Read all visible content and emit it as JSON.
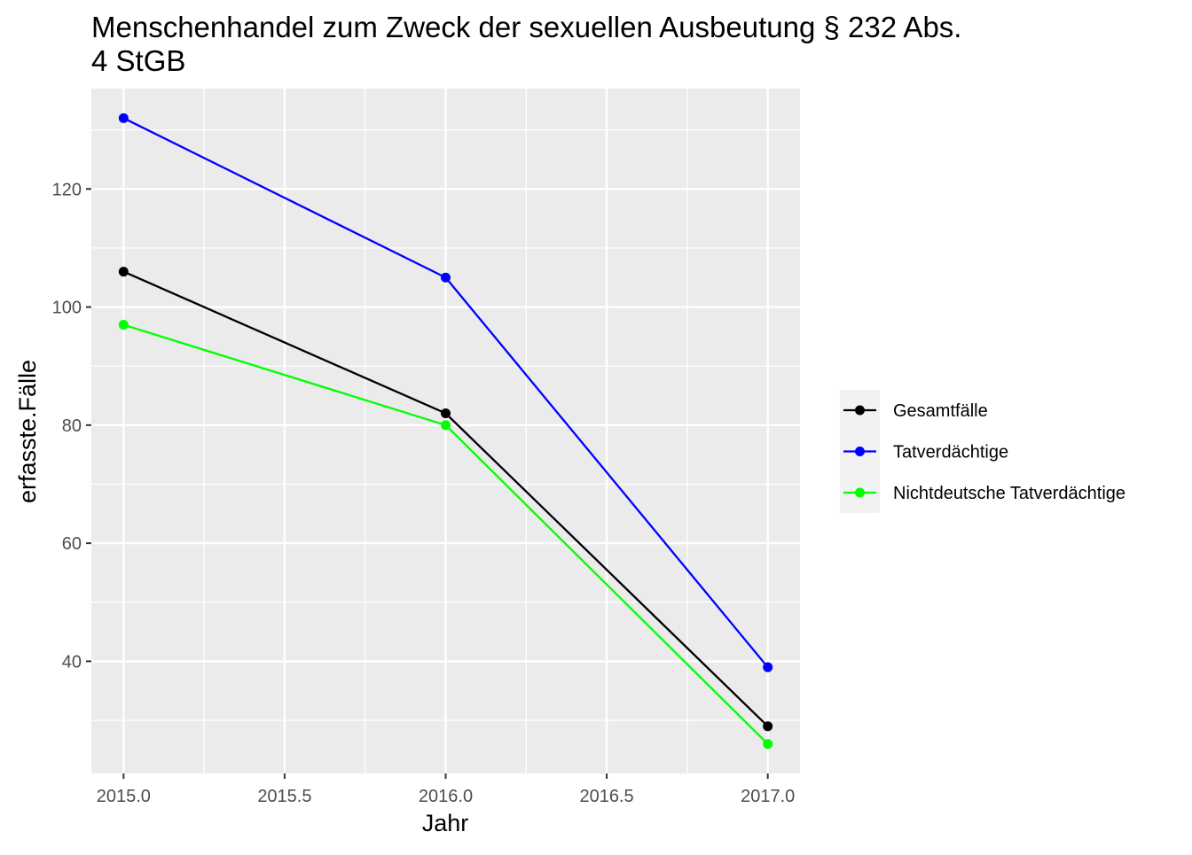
{
  "chart_data": {
    "type": "line",
    "title_line1": "Menschenhandel zum Zweck der sexuellen Ausbeutung § 232 Abs.",
    "title_line2": "4 StGB",
    "xlabel": "Jahr",
    "ylabel": "erfasste.Fälle",
    "x": [
      2015.0,
      2016.0,
      2017.0
    ],
    "xlim": [
      2014.9,
      2017.1
    ],
    "ylim": [
      21,
      137
    ],
    "xticks": [
      2015.0,
      2015.5,
      2016.0,
      2016.5,
      2017.0
    ],
    "xtick_labels": [
      "2015.0",
      "2015.5",
      "2016.0",
      "2016.5",
      "2017.0"
    ],
    "yticks": [
      40,
      60,
      80,
      100,
      120
    ],
    "ytick_labels": [
      "40",
      "60",
      "80",
      "100",
      "120"
    ],
    "grid": true,
    "legend_position": "right",
    "series": [
      {
        "name": "Gesamtfälle",
        "color": "#000000",
        "values": [
          106,
          82,
          29
        ]
      },
      {
        "name": "Tatverdächtige",
        "color": "#0000ff",
        "values": [
          132,
          105,
          39
        ]
      },
      {
        "name": "Nichtdeutsche Tatverdächtige",
        "color": "#00ff00",
        "values": [
          97,
          80,
          26
        ]
      }
    ]
  }
}
